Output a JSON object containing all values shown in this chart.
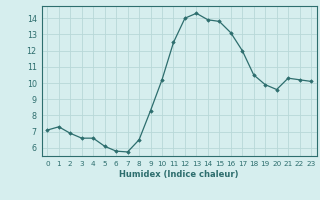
{
  "xlabel": "Humidex (Indice chaleur)",
  "ylabel": "",
  "x": [
    0,
    1,
    2,
    3,
    4,
    5,
    6,
    7,
    8,
    9,
    10,
    11,
    12,
    13,
    14,
    15,
    16,
    17,
    18,
    19,
    20,
    21,
    22,
    23
  ],
  "y": [
    7.1,
    7.3,
    6.9,
    6.6,
    6.6,
    6.1,
    5.8,
    5.75,
    6.5,
    8.3,
    10.2,
    12.5,
    14.0,
    14.3,
    13.9,
    13.8,
    13.1,
    12.0,
    10.5,
    9.9,
    9.6,
    10.3,
    10.2,
    10.1
  ],
  "line_color": "#2d6e6e",
  "marker": "D",
  "marker_size": 1.8,
  "bg_color": "#d6eeee",
  "grid_color": "#b8d8d8",
  "ylim": [
    5.5,
    14.75
  ],
  "xlim": [
    -0.5,
    23.5
  ],
  "yticks": [
    6,
    7,
    8,
    9,
    10,
    11,
    12,
    13,
    14
  ],
  "xticks": [
    0,
    1,
    2,
    3,
    4,
    5,
    6,
    7,
    8,
    9,
    10,
    11,
    12,
    13,
    14,
    15,
    16,
    17,
    18,
    19,
    20,
    21,
    22,
    23
  ],
  "xlabel_fontsize": 6.0,
  "tick_fontsize_x": 5.2,
  "tick_fontsize_y": 5.8
}
